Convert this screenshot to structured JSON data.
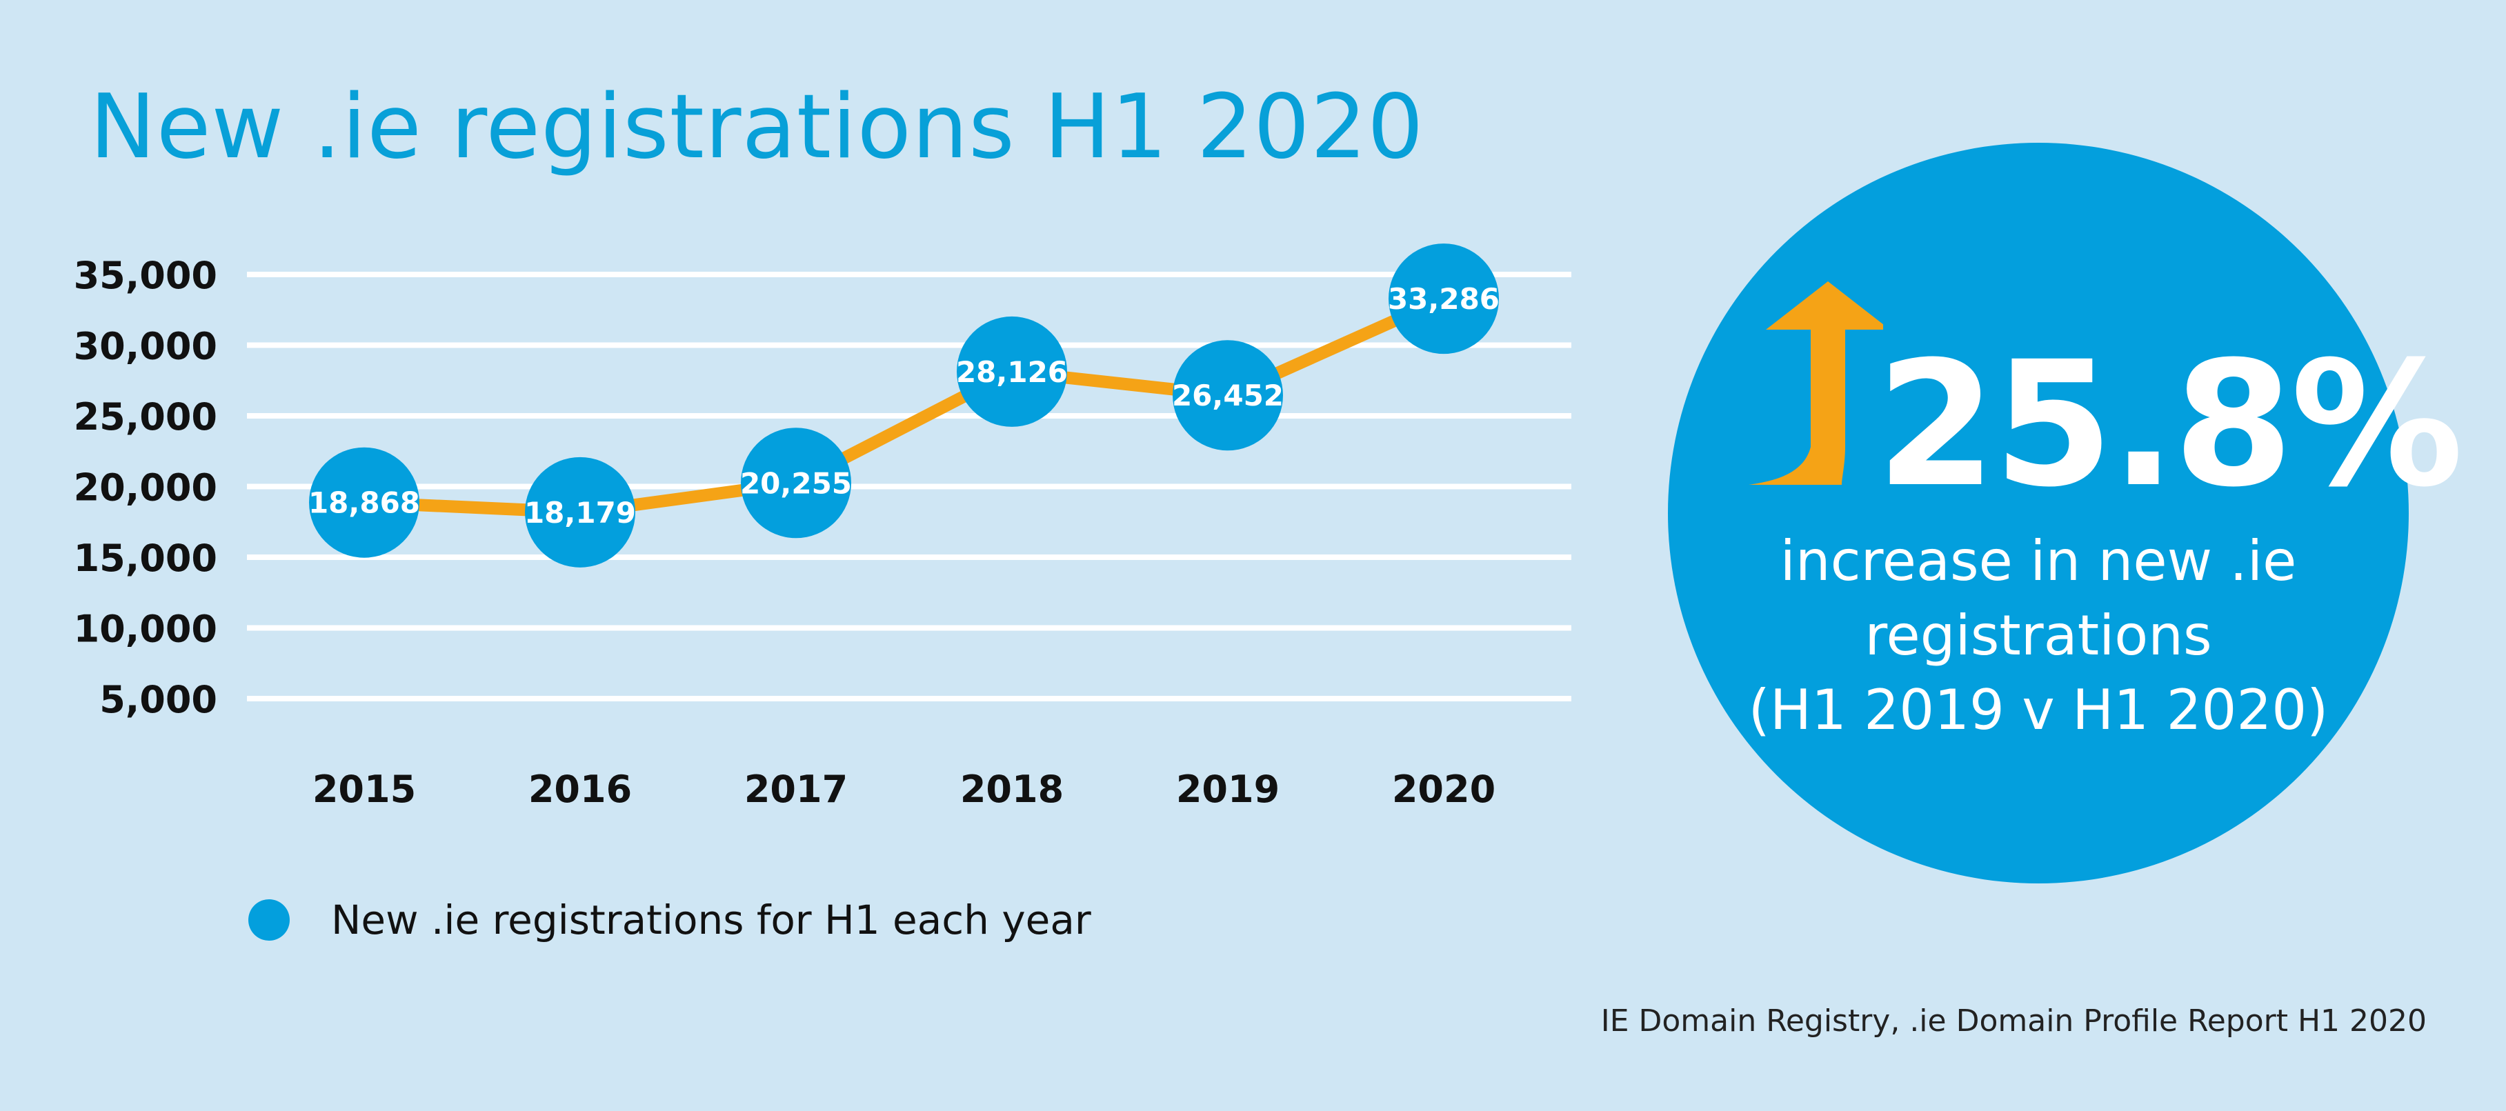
{
  "title": "New .ie registrations H1 2020",
  "colors": {
    "background": "#cfe6f4",
    "accent_blue": "#039fdd",
    "line_orange": "#f5a316",
    "grid": "#ffffff"
  },
  "chart_data": {
    "type": "line",
    "title": "New .ie registrations H1 2020",
    "categories": [
      "2015",
      "2016",
      "2017",
      "2018",
      "2019",
      "2020"
    ],
    "series": [
      {
        "name": "New .ie registrations for H1 each year",
        "values": [
          18868,
          18179,
          20255,
          28126,
          26452,
          33286
        ],
        "labels": [
          "18,868",
          "18,179",
          "20,255",
          "28,126",
          "26,452",
          "33,286"
        ]
      }
    ],
    "yticks": [
      "5,000",
      "10,000",
      "15,000",
      "20,000",
      "25,000",
      "30,000",
      "35,000"
    ],
    "ytick_values": [
      5000,
      10000,
      15000,
      20000,
      25000,
      30000,
      35000
    ],
    "ylim": [
      5000,
      35000
    ],
    "grid": true,
    "legend_position": "bottom-left",
    "xlabel": "",
    "ylabel": ""
  },
  "legend": {
    "label": "New .ie registrations for H1 each year",
    "icon": "circle-marker-icon"
  },
  "stat": {
    "value": "25.8%",
    "line1": "increase in new .ie",
    "line2": "registrations",
    "line3": "(H1 2019 v H1 2020)",
    "icon": "up-arrow-icon"
  },
  "source": "IE Domain Registry, .ie Domain Profile Report H1 2020"
}
